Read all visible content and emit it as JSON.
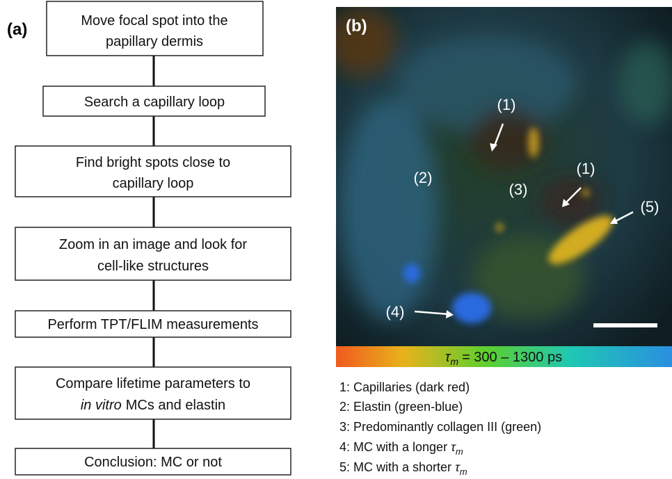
{
  "panel_a": {
    "label": "(a)",
    "steps": [
      [
        "Move focal spot into the",
        "papillary dermis"
      ],
      [
        "Search a capillary loop"
      ],
      [
        "Find bright spots close to",
        "capillary loop"
      ],
      [
        "Zoom in an image and look for",
        "cell-like structures"
      ],
      [
        "Perform TPT/FLIM measurements"
      ],
      [
        "Compare lifetime parameters to",
        "in vitro",
        "MCs and elastin"
      ],
      [
        "Conclusion: MC or not"
      ]
    ]
  },
  "panel_b": {
    "label": "(b)",
    "annotations": [
      "(1)",
      "(1)",
      "(2)",
      "(3)",
      "(4)",
      "(5)"
    ],
    "colorbar": {
      "symbol": "τ",
      "subscript": "m",
      "text": "= 300 – 1300 ps"
    },
    "legend": [
      "1: Capillaries (dark red)",
      "2: Elastin (green-blue)",
      "3: Predominantly collagen III (green)",
      {
        "text": "4: MC with a longer",
        "symbol": "τ",
        "subscript": "m"
      },
      {
        "text": "5: MC with a shorter",
        "symbol": "τ",
        "subscript": "m"
      }
    ]
  }
}
